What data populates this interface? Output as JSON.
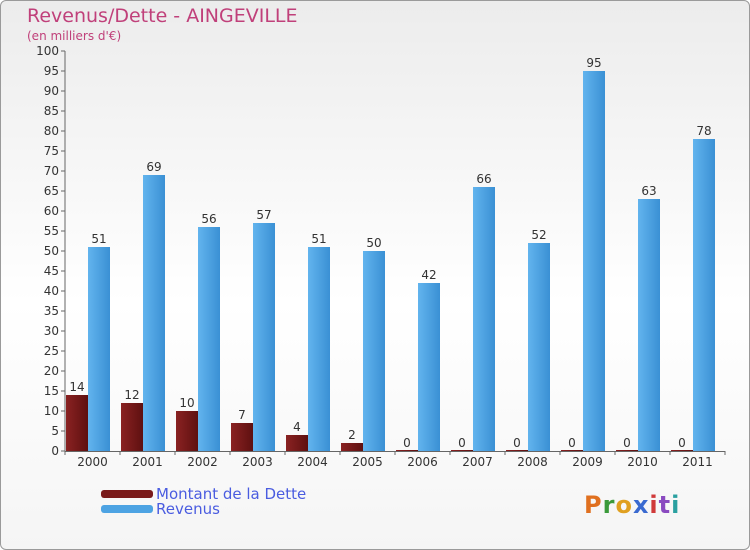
{
  "title": "Revenus/Dette - AINGEVILLE",
  "subtitle": "(en milliers d'€)",
  "logo_text": "Proxiti",
  "colors": {
    "dette": "#7a1a1a",
    "dette_dark": "#5a0e0e",
    "revenus": "#4da3e3",
    "revenus_dark": "#2e7fc2",
    "title": "#c0407a",
    "legend_text": "#4a5ce0"
  },
  "chart_data": {
    "type": "bar",
    "title": "Revenus/Dette - AINGEVILLE",
    "subtitle": "(en milliers d'€)",
    "categories": [
      "2000",
      "2001",
      "2002",
      "2003",
      "2004",
      "2005",
      "2006",
      "2007",
      "2008",
      "2009",
      "2010",
      "2011"
    ],
    "series": [
      {
        "name": "Montant de la Dette",
        "values": [
          14,
          12,
          10,
          7,
          4,
          2,
          0,
          0,
          0,
          0,
          0,
          0
        ]
      },
      {
        "name": "Revenus",
        "values": [
          51,
          69,
          56,
          57,
          51,
          50,
          42,
          66,
          52,
          95,
          63,
          78
        ]
      }
    ],
    "yticks": [
      0,
      5,
      10,
      15,
      20,
      25,
      30,
      35,
      40,
      45,
      50,
      55,
      60,
      65,
      70,
      75,
      80,
      85,
      90,
      95,
      100
    ],
    "ylim": [
      0,
      100
    ],
    "xlabel": "",
    "ylabel": "",
    "grid": false,
    "legend": "bottom-left"
  }
}
